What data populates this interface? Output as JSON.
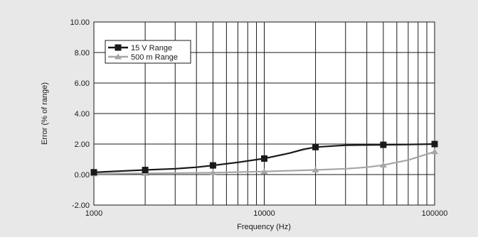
{
  "chart_data": {
    "type": "line",
    "xlabel": "Frequency (Hz)",
    "ylabel": "Error (% of range)",
    "x_scale": "log",
    "xlim": [
      1000,
      100000
    ],
    "ylim": [
      -2,
      10
    ],
    "grid": true,
    "legend_position": "top-left",
    "x_ticks": [
      1000,
      10000,
      100000
    ],
    "x_tick_labels": [
      "1000",
      "10000",
      "100000"
    ],
    "y_ticks": [
      -2,
      0,
      2,
      4,
      6,
      8,
      10
    ],
    "y_tick_labels": [
      "-2.00",
      "0.00",
      "2.00",
      "4.00",
      "6.00",
      "8.00",
      "10.00"
    ],
    "series": [
      {
        "name": "15 V Range",
        "color": "#1a1a1a",
        "marker": "square",
        "x": [
          1000,
          2000,
          3000,
          4000,
          5000,
          7000,
          10000,
          14000,
          17000,
          20000,
          30000,
          50000,
          70000,
          100000
        ],
        "y": [
          0.15,
          0.3,
          0.38,
          0.48,
          0.6,
          0.8,
          1.05,
          1.4,
          1.65,
          1.8,
          1.92,
          1.95,
          1.97,
          2.0
        ],
        "marker_x": [
          1000,
          2000,
          5000,
          10000,
          20000,
          50000,
          100000
        ],
        "marker_y": [
          0.15,
          0.3,
          0.6,
          1.05,
          1.8,
          1.95,
          2.0
        ]
      },
      {
        "name": "500 m Range",
        "color": "#a6a6a6",
        "marker": "triangle",
        "x": [
          1000,
          2000,
          5000,
          10000,
          20000,
          30000,
          40000,
          50000,
          70000,
          100000
        ],
        "y": [
          0.05,
          0.08,
          0.12,
          0.2,
          0.3,
          0.38,
          0.48,
          0.62,
          0.95,
          1.5
        ],
        "marker_x": [
          1000,
          2000,
          5000,
          10000,
          20000,
          50000,
          100000
        ],
        "marker_y": [
          0.05,
          0.08,
          0.12,
          0.2,
          0.3,
          0.62,
          1.5
        ]
      }
    ]
  }
}
